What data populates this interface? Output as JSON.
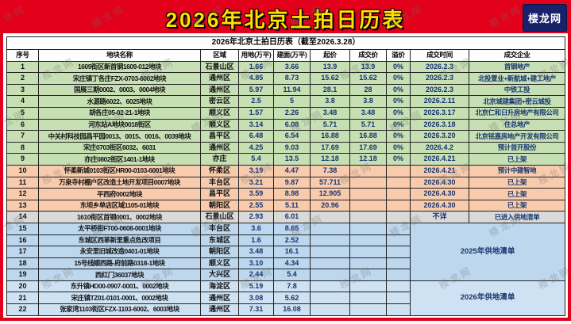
{
  "page": {
    "title": "2026年北京土拍日历表",
    "logo": "楼龙网",
    "watermark": "楼龙网",
    "colors": {
      "banner": "#e2001a",
      "title_text": "#ffe100",
      "logo_bg": "#18226b",
      "group_sold": "#c6e0b4",
      "group_listed": "#f8cbad",
      "group_unknown": "#d9d9d9",
      "group_plan2025": "#bdd7ee",
      "group_plan2026": "#cfe2f3"
    }
  },
  "table": {
    "caption": "2026年北京土拍日历表（截至2026.3.28）",
    "columns": [
      "序号",
      "地块名称",
      "区域",
      "用地(万平)",
      "建面(万平)",
      "起价",
      "成交价",
      "溢价",
      "成交时间",
      "成交企业"
    ],
    "rows": [
      {
        "group": "sold",
        "cells": [
          "1",
          "1609街区新首钢1609-012地块",
          "石景山区",
          "1.66",
          "3.66",
          "13.9",
          "13.9",
          "0%",
          "2026.2.3",
          "首钢地产"
        ]
      },
      {
        "group": "sold",
        "cells": [
          "2",
          "宋庄镇丁各庄FZX-0703-6002地块",
          "通州区",
          "4.85",
          "8.73",
          "15.62",
          "15.62",
          "0%",
          "2026.2.3",
          "北投置业+新航城+建工地产"
        ]
      },
      {
        "group": "sold",
        "cells": [
          "3",
          "国展三期0002、0003、0004地块",
          "通州区",
          "5.97",
          "11.94",
          "28.1",
          "28",
          "0%",
          "2026.2.3",
          "中铁工投"
        ]
      },
      {
        "group": "sold",
        "cells": [
          "4",
          "水源路6022、6025地块",
          "密云区",
          "2.5",
          "5",
          "3.8",
          "3.8",
          "0%",
          "2026.2.11",
          "北京城建集团+密云城投"
        ]
      },
      {
        "group": "sold",
        "cells": [
          "5",
          "胡各庄05-02-21-1地块",
          "顺义区",
          "1.57",
          "2.26",
          "3.48",
          "3.48",
          "0%",
          "2026.3.17",
          "北京仁和日升房地产有限公司"
        ]
      },
      {
        "group": "sold",
        "cells": [
          "6",
          "河东站A地块0018街区",
          "顺义区",
          "3.14",
          "6.08",
          "5.71",
          "5.71",
          "0%",
          "2026.3.18",
          "住总地产"
        ]
      },
      {
        "group": "sold",
        "cells": [
          "7",
          "中关村科技园昌平园0013、0015、0016、0039地块",
          "昌平区",
          "6.48",
          "6.54",
          "16.88",
          "16.88",
          "0%",
          "2026.3.20",
          "北京铭嘉房地产开发有限公司"
        ]
      },
      {
        "group": "sold",
        "cells": [
          "8",
          "宋庄0703街区6032、6031",
          "通州区",
          "4.25",
          "9.03",
          "17.69",
          "17.69",
          "0%",
          "2026.4.2",
          "预计首开股份"
        ]
      },
      {
        "group": "sold",
        "cells": [
          "9",
          "亦庄0802街区1401-1地块",
          "亦庄",
          "5.4",
          "13.5",
          "12.18",
          "12.18",
          "0%",
          "2026.4.21",
          "已上架"
        ]
      },
      {
        "group": "listed",
        "cells": [
          "10",
          "怀柔新城0103街区HR00-0103-6001地块",
          "怀柔区",
          "3.19",
          "4.47",
          "7.38",
          "",
          "",
          "2026.4.21",
          "预计中建智地"
        ]
      },
      {
        "group": "listed",
        "cells": [
          "11",
          "万泉寺村棚户区改造土地开发项目0007地块",
          "丰台区",
          "3.21",
          "9.87",
          "57.711",
          "",
          "",
          "2026.4.30",
          "已上架"
        ]
      },
      {
        "group": "listed",
        "cells": [
          "12",
          "平西府0002地块",
          "昌平区",
          "3.59",
          "8.98",
          "12.905",
          "",
          "",
          "2026.4.30",
          "已上架"
        ]
      },
      {
        "group": "listed",
        "cells": [
          "13",
          "东坝乡单店区域1105-01地块",
          "朝阳区",
          "2.55",
          "5.11",
          "20.96",
          "",
          "",
          "2026.4.30",
          "已上架"
        ]
      },
      {
        "group": "unknown",
        "cells": [
          "14",
          "1610街区首钢0001、0002地块",
          "石景山区",
          "2.93",
          "6.01",
          "",
          "",
          "",
          "不详",
          "已进入供地清单"
        ]
      },
      {
        "group": "plan2025",
        "cells": [
          "15",
          "太平桥街FT00-0608-0001地块",
          "丰台区",
          "3.6",
          "8.65",
          "",
          "",
          ""
        ],
        "merge": {
          "rows": 5,
          "text": "2025年供地清单"
        }
      },
      {
        "group": "plan2025",
        "cells": [
          "16",
          "东城区西革新里重点危改项目",
          "东城区",
          "1.6",
          "2.52",
          "",
          "",
          ""
        ],
        "merged": true
      },
      {
        "group": "plan2025",
        "cells": [
          "17",
          "永安里旧城改造0401-01地块",
          "朝阳区",
          "3.48",
          "16.1",
          "",
          "",
          ""
        ],
        "merged": true
      },
      {
        "group": "plan2025",
        "cells": [
          "18",
          "15号线顺西路-府前路0318-1地块",
          "顺义区",
          "3.10",
          "4.34",
          "",
          "",
          ""
        ],
        "merged": true
      },
      {
        "group": "plan2025",
        "cells": [
          "19",
          "西红门36037地块",
          "大兴区",
          "2.44",
          "5.4",
          "",
          "",
          ""
        ],
        "merged": true
      },
      {
        "group": "plan2026",
        "cells": [
          "20",
          "东升镇HD00-0907-0001、0002地块",
          "海淀区",
          "5.19",
          "7.8",
          "",
          "",
          ""
        ],
        "merge": {
          "rows": 3,
          "text": "2026年供地清单"
        }
      },
      {
        "group": "plan2026",
        "cells": [
          "21",
          "宋庄镇TZ01-0101-0001、0002地块",
          "通州区",
          "3.08",
          "5.62",
          "",
          "",
          ""
        ],
        "merged": true
      },
      {
        "group": "plan2026",
        "cells": [
          "22",
          "张家湾1103街区FZX-1103-6002、6003地块",
          "通州区",
          "7.31",
          "16.08",
          "",
          "",
          ""
        ],
        "merged": true
      }
    ]
  }
}
